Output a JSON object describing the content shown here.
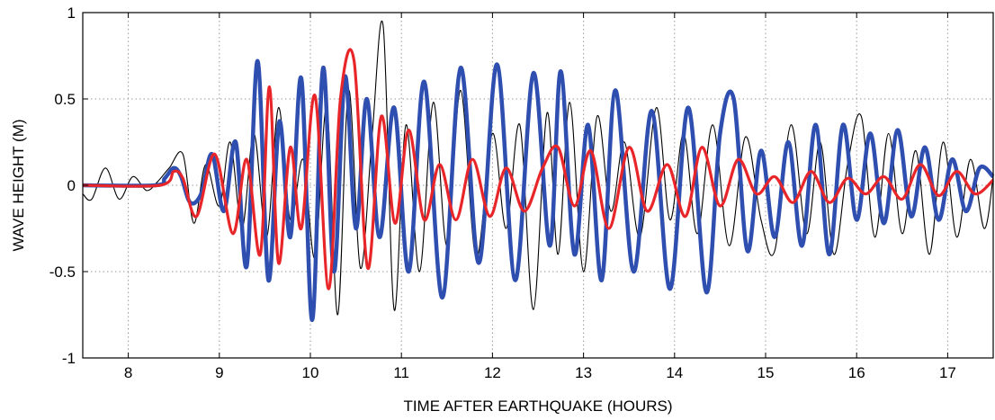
{
  "chart_data": {
    "type": "line",
    "title": "",
    "xlabel": "TIME AFTER EARTHQUAKE (HOURS)",
    "ylabel": "WAVE HEIGHT (M)",
    "xlim": [
      7.5,
      17.5
    ],
    "ylim": [
      -1,
      1
    ],
    "xticks": [
      8,
      9,
      10,
      11,
      12,
      13,
      14,
      15,
      16,
      17
    ],
    "yticks": [
      -1,
      -0.5,
      0,
      0.5,
      1
    ],
    "xtick_labels": [
      "8",
      "9",
      "10",
      "11",
      "12",
      "13",
      "14",
      "15",
      "16",
      "17"
    ],
    "ytick_labels": [
      "-1",
      "-0.5",
      "0",
      "0.5",
      "1"
    ],
    "grid": true,
    "legend": "none",
    "series": [
      {
        "color": "#2f4fb0",
        "x": [
          7.5,
          8.3,
          8.4,
          8.5,
          8.58,
          8.68,
          8.8,
          8.92,
          9.05,
          9.18,
          9.3,
          9.42,
          9.54,
          9.66,
          9.78,
          9.9,
          10.02,
          10.14,
          10.26,
          10.38,
          10.5,
          10.62,
          10.76,
          10.92,
          11.08,
          11.25,
          11.45,
          11.65,
          11.85,
          12.05,
          12.25,
          12.45,
          12.63,
          12.75,
          12.9,
          13.05,
          13.2,
          13.35,
          13.55,
          13.75,
          13.95,
          14.15,
          14.35,
          14.5,
          14.65,
          14.8,
          14.95,
          15.1,
          15.25,
          15.4,
          15.55,
          15.7,
          15.85,
          16.0,
          16.15,
          16.3,
          16.45,
          16.6,
          16.75,
          16.9,
          17.05,
          17.2,
          17.35,
          17.5
        ],
        "y": [
          0.0,
          0.0,
          0.04,
          0.1,
          0.05,
          -0.1,
          -0.05,
          0.18,
          -0.15,
          0.25,
          -0.47,
          0.72,
          -0.55,
          0.37,
          -0.3,
          0.62,
          -0.78,
          0.68,
          -0.5,
          0.63,
          -0.25,
          0.5,
          -0.3,
          0.45,
          -0.5,
          0.6,
          -0.65,
          0.68,
          -0.45,
          0.7,
          -0.55,
          0.65,
          -0.35,
          0.66,
          -0.4,
          0.35,
          -0.55,
          0.55,
          -0.5,
          0.43,
          -0.6,
          0.45,
          -0.62,
          0.3,
          0.5,
          -0.38,
          0.2,
          -0.3,
          0.25,
          -0.35,
          0.35,
          -0.4,
          0.35,
          -0.2,
          0.3,
          -0.22,
          0.32,
          -0.18,
          0.22,
          -0.2,
          0.15,
          -0.15,
          0.1,
          0.05
        ]
      },
      {
        "color": "#e8262a",
        "x": [
          7.5,
          8.35,
          8.5,
          8.6,
          8.75,
          8.95,
          9.15,
          9.3,
          9.45,
          9.55,
          9.65,
          9.78,
          9.9,
          10.05,
          10.2,
          10.33,
          10.48,
          10.63,
          10.78,
          10.93,
          11.08,
          11.25,
          11.42,
          11.6,
          11.78,
          11.97,
          12.15,
          12.35,
          12.55,
          12.72,
          12.9,
          13.08,
          13.28,
          13.5,
          13.7,
          13.92,
          14.12,
          14.3,
          14.5,
          14.7,
          14.9,
          15.1,
          15.3,
          15.5,
          15.7,
          15.9,
          16.1,
          16.3,
          16.5,
          16.7,
          16.9,
          17.1,
          17.3,
          17.5
        ],
        "y": [
          0.0,
          0.0,
          0.08,
          0.04,
          -0.18,
          0.18,
          -0.28,
          0.15,
          -0.4,
          0.57,
          -0.45,
          0.22,
          -0.25,
          0.52,
          -0.6,
          0.5,
          0.72,
          -0.48,
          0.4,
          -0.22,
          0.32,
          -0.2,
          0.12,
          -0.2,
          0.15,
          -0.18,
          0.1,
          -0.15,
          0.1,
          0.22,
          -0.12,
          0.2,
          -0.25,
          0.22,
          -0.15,
          0.12,
          -0.18,
          0.22,
          -0.12,
          0.15,
          -0.05,
          0.05,
          -0.1,
          0.08,
          -0.1,
          0.04,
          -0.05,
          0.05,
          -0.08,
          0.12,
          -0.06,
          0.08,
          -0.05,
          0.03
        ]
      },
      {
        "color": "#000000",
        "x": [
          7.5,
          7.6,
          7.75,
          7.9,
          8.05,
          8.2,
          8.32,
          8.45,
          8.6,
          8.72,
          8.85,
          9.0,
          9.12,
          9.25,
          9.38,
          9.52,
          9.65,
          9.78,
          9.92,
          10.05,
          10.18,
          10.3,
          10.42,
          10.55,
          10.68,
          10.8,
          10.92,
          11.05,
          11.2,
          11.35,
          11.5,
          11.65,
          11.82,
          12.0,
          12.15,
          12.3,
          12.45,
          12.6,
          12.72,
          12.85,
          13.0,
          13.15,
          13.3,
          13.45,
          13.62,
          13.8,
          13.95,
          14.1,
          14.25,
          14.42,
          14.6,
          14.78,
          14.95,
          15.1,
          15.28,
          15.45,
          15.6,
          15.75,
          15.9,
          16.05,
          16.2,
          16.35,
          16.5,
          16.65,
          16.8,
          16.95,
          17.1,
          17.25,
          17.4,
          17.5
        ],
        "y": [
          -0.05,
          -0.08,
          0.1,
          -0.08,
          0.05,
          -0.03,
          0.02,
          0.1,
          0.18,
          -0.22,
          0.12,
          -0.12,
          0.25,
          -0.25,
          0.3,
          -0.3,
          0.45,
          -0.2,
          0.15,
          -0.42,
          0.45,
          -0.75,
          0.55,
          -0.48,
          0.3,
          0.92,
          -0.72,
          0.35,
          -0.5,
          0.48,
          -0.35,
          0.55,
          -0.42,
          0.3,
          -0.25,
          0.35,
          -0.72,
          0.42,
          -0.4,
          0.48,
          -0.5,
          0.4,
          -0.15,
          0.25,
          -0.3,
          0.45,
          -0.2,
          0.3,
          -0.28,
          0.35,
          -0.35,
          0.28,
          -0.2,
          -0.38,
          0.35,
          -0.28,
          0.25,
          -0.4,
          0.12,
          0.4,
          -0.3,
          0.3,
          -0.28,
          0.2,
          -0.4,
          0.25,
          -0.3,
          0.15,
          -0.25,
          0.05
        ]
      }
    ]
  }
}
